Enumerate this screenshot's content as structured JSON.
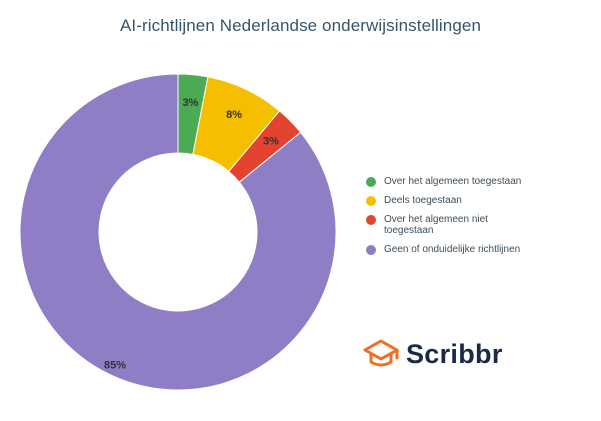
{
  "chart_data": {
    "type": "pie",
    "title": "AI-richtlijnen Nederlandse onderwijsinstellingen",
    "categories": [
      "Over het algemeen toegestaan",
      "Deels toegestaan",
      "Over het algemeen niet toegestaan",
      "Geen of onduidelijke richtlijnen"
    ],
    "values": [
      3,
      8,
      3,
      85
    ],
    "labels": [
      "3%",
      "8%",
      "3%",
      "85%"
    ],
    "colors": [
      "#4caa54",
      "#f5bf00",
      "#e3432f",
      "#8f7dc6"
    ],
    "donut": true,
    "legend": "right"
  },
  "brand": {
    "name": "Scribbr",
    "icon": "graduation-cap-icon",
    "color": "#f26f21"
  }
}
